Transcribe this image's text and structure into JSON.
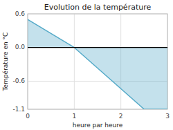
{
  "chart_data": {
    "type": "area",
    "title": "Evolution de la température",
    "xlabel": "heure par heure",
    "ylabel": "Température en °C",
    "x": [
      0,
      1,
      2.5,
      3
    ],
    "values": [
      0.5,
      0.0,
      -1.1,
      -1.1
    ],
    "color": "#55aac8",
    "xlim": [
      0,
      3
    ],
    "ylim": [
      -1.1,
      0.6
    ],
    "xticks": [
      0,
      1,
      2,
      3
    ],
    "yticks": [
      -1.1,
      -0.6,
      {
        "value": 0,
        "label": "0.0"
      },
      0.6
    ],
    "grid": true
  }
}
